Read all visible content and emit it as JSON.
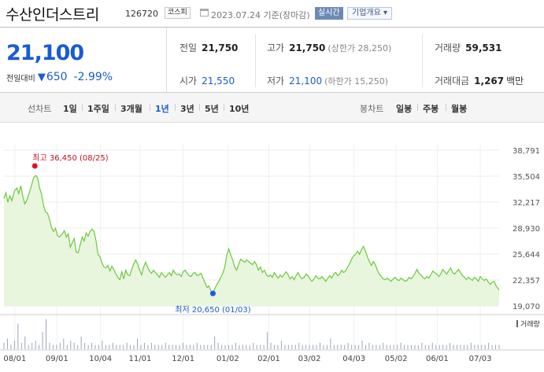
{
  "header": {
    "company_name": "수산인더스트리",
    "code": "126720",
    "market": "코스피",
    "date": "2023.07.24 기준(장마감)",
    "realtime": "실시간",
    "company_overview": "기업개요 ▾"
  },
  "price": {
    "current": "21,100",
    "change_label": "전일대비",
    "change_amount": "650",
    "change_percent": "-2.99%",
    "direction": "down",
    "color_down": "#1a5bd6"
  },
  "stats": {
    "prev_close": {
      "label": "전일",
      "value": "21,750"
    },
    "open": {
      "label": "시가",
      "value": "21,550"
    },
    "high": {
      "label": "고가",
      "value": "21,750",
      "sub": "(상한가 28,250)"
    },
    "low": {
      "label": "저가",
      "value": "21,100",
      "sub": "(하한가 15,250)"
    },
    "volume": {
      "label": "거래량",
      "value": "59,531"
    },
    "trade_value": {
      "label": "거래대금",
      "value": "1,267",
      "unit": "백만"
    }
  },
  "tabs": {
    "line_label": "선차트",
    "line_periods": [
      "1일",
      "1주일",
      "3개월",
      "1년",
      "3년",
      "5년",
      "10년"
    ],
    "active_period": "1년",
    "candle_label": "봉차트",
    "candle_periods": [
      "일봉",
      "주봉",
      "월봉"
    ]
  },
  "chart_data": {
    "type": "area",
    "ylim": [
      19070,
      38791
    ],
    "y_ticks": [
      "38,791",
      "35,504",
      "32,217",
      "28,930",
      "25,644",
      "22,357",
      "19,070"
    ],
    "x_ticks": [
      "08/01",
      "09/01",
      "10/04",
      "11/01",
      "12/01",
      "01/02",
      "02/01",
      "03/02",
      "04/03",
      "05/02",
      "06/01",
      "07/03"
    ],
    "high_annotation": "최고 36,450 (08/25)",
    "low_annotation": "최저 20,650 (01/03)",
    "volume_legend": "거래량",
    "line_color": "#6cc83e",
    "fill_color": "#e8f6de",
    "price_series": [
      [
        0.0,
        32700
      ],
      [
        0.004,
        33400
      ],
      [
        0.008,
        32200
      ],
      [
        0.012,
        33000
      ],
      [
        0.016,
        32400
      ],
      [
        0.021,
        33600
      ],
      [
        0.026,
        34000
      ],
      [
        0.03,
        33300
      ],
      [
        0.034,
        34300
      ],
      [
        0.038,
        33000
      ],
      [
        0.042,
        32000
      ],
      [
        0.046,
        32400
      ],
      [
        0.05,
        33200
      ],
      [
        0.055,
        34200
      ],
      [
        0.06,
        35300
      ],
      [
        0.064,
        35600
      ],
      [
        0.068,
        35300
      ],
      [
        0.072,
        34000
      ],
      [
        0.076,
        33200
      ],
      [
        0.08,
        31800
      ],
      [
        0.084,
        31000
      ],
      [
        0.088,
        30800
      ],
      [
        0.092,
        30000
      ],
      [
        0.096,
        29000
      ],
      [
        0.1,
        28500
      ],
      [
        0.104,
        28900
      ],
      [
        0.108,
        28000
      ],
      [
        0.112,
        27800
      ],
      [
        0.118,
        28200
      ],
      [
        0.122,
        28600
      ],
      [
        0.126,
        27800
      ],
      [
        0.13,
        28200
      ],
      [
        0.134,
        26500
      ],
      [
        0.138,
        27100
      ],
      [
        0.142,
        27600
      ],
      [
        0.146,
        25900
      ],
      [
        0.15,
        25800
      ],
      [
        0.154,
        26800
      ],
      [
        0.158,
        27800
      ],
      [
        0.162,
        27300
      ],
      [
        0.166,
        28300
      ],
      [
        0.17,
        27900
      ],
      [
        0.174,
        28500
      ],
      [
        0.178,
        28800
      ],
      [
        0.182,
        28500
      ],
      [
        0.186,
        27300
      ],
      [
        0.19,
        25600
      ],
      [
        0.194,
        25300
      ],
      [
        0.198,
        24500
      ],
      [
        0.202,
        24000
      ],
      [
        0.206,
        23900
      ],
      [
        0.21,
        24200
      ],
      [
        0.214,
        23500
      ],
      [
        0.218,
        24100
      ],
      [
        0.222,
        23700
      ],
      [
        0.226,
        23100
      ],
      [
        0.23,
        22700
      ],
      [
        0.234,
        22400
      ],
      [
        0.238,
        23400
      ],
      [
        0.242,
        22500
      ],
      [
        0.246,
        23600
      ],
      [
        0.25,
        23000
      ],
      [
        0.254,
        22900
      ],
      [
        0.258,
        23700
      ],
      [
        0.262,
        24400
      ],
      [
        0.266,
        24900
      ],
      [
        0.27,
        24400
      ],
      [
        0.274,
        23600
      ],
      [
        0.278,
        23000
      ],
      [
        0.282,
        24000
      ],
      [
        0.286,
        24600
      ],
      [
        0.29,
        24000
      ],
      [
        0.294,
        23500
      ],
      [
        0.298,
        23200
      ],
      [
        0.302,
        23600
      ],
      [
        0.306,
        23300
      ],
      [
        0.31,
        23000
      ],
      [
        0.314,
        22700
      ],
      [
        0.318,
        23300
      ],
      [
        0.322,
        23000
      ],
      [
        0.326,
        22700
      ],
      [
        0.33,
        23000
      ],
      [
        0.334,
        23300
      ],
      [
        0.338,
        22900
      ],
      [
        0.342,
        23600
      ],
      [
        0.346,
        23200
      ],
      [
        0.35,
        23000
      ],
      [
        0.354,
        23100
      ],
      [
        0.358,
        22800
      ],
      [
        0.362,
        23400
      ],
      [
        0.366,
        23600
      ],
      [
        0.37,
        23200
      ],
      [
        0.374,
        22900
      ],
      [
        0.378,
        22800
      ],
      [
        0.382,
        23200
      ],
      [
        0.386,
        23300
      ],
      [
        0.39,
        22900
      ],
      [
        0.394,
        23000
      ],
      [
        0.398,
        23200
      ],
      [
        0.402,
        22600
      ],
      [
        0.406,
        22000
      ],
      [
        0.41,
        21400
      ],
      [
        0.414,
        21600
      ],
      [
        0.418,
        21000
      ],
      [
        0.422,
        20650
      ],
      [
        0.426,
        21300
      ],
      [
        0.43,
        21800
      ],
      [
        0.434,
        22200
      ],
      [
        0.438,
        22700
      ],
      [
        0.442,
        23200
      ],
      [
        0.446,
        24000
      ],
      [
        0.45,
        25500
      ],
      [
        0.454,
        26300
      ],
      [
        0.458,
        25500
      ],
      [
        0.462,
        24900
      ],
      [
        0.466,
        24000
      ],
      [
        0.47,
        23600
      ],
      [
        0.474,
        24300
      ],
      [
        0.478,
        25000
      ],
      [
        0.482,
        24800
      ],
      [
        0.486,
        24600
      ],
      [
        0.49,
        24900
      ],
      [
        0.494,
        24700
      ],
      [
        0.498,
        24500
      ],
      [
        0.502,
        24300
      ],
      [
        0.506,
        24700
      ],
      [
        0.51,
        24300
      ],
      [
        0.514,
        23600
      ],
      [
        0.518,
        24000
      ],
      [
        0.522,
        23300
      ],
      [
        0.526,
        23600
      ],
      [
        0.53,
        23000
      ],
      [
        0.534,
        22800
      ],
      [
        0.538,
        23000
      ],
      [
        0.542,
        22700
      ],
      [
        0.546,
        23300
      ],
      [
        0.55,
        22900
      ],
      [
        0.554,
        22600
      ],
      [
        0.558,
        23000
      ],
      [
        0.562,
        22700
      ],
      [
        0.566,
        23100
      ],
      [
        0.57,
        23400
      ],
      [
        0.574,
        23000
      ],
      [
        0.578,
        22500
      ],
      [
        0.582,
        22800
      ],
      [
        0.586,
        22400
      ],
      [
        0.59,
        22900
      ],
      [
        0.594,
        23300
      ],
      [
        0.598,
        22800
      ],
      [
        0.602,
        22500
      ],
      [
        0.606,
        22700
      ],
      [
        0.61,
        23100
      ],
      [
        0.614,
        22900
      ],
      [
        0.618,
        22500
      ],
      [
        0.622,
        22200
      ],
      [
        0.626,
        22500
      ],
      [
        0.63,
        22900
      ],
      [
        0.634,
        22600
      ],
      [
        0.638,
        22500
      ],
      [
        0.642,
        22800
      ],
      [
        0.646,
        22500
      ],
      [
        0.65,
        22200
      ],
      [
        0.654,
        22600
      ],
      [
        0.658,
        22900
      ],
      [
        0.662,
        22600
      ],
      [
        0.666,
        23100
      ],
      [
        0.67,
        23300
      ],
      [
        0.674,
        22900
      ],
      [
        0.678,
        23100
      ],
      [
        0.682,
        23600
      ],
      [
        0.686,
        23300
      ],
      [
        0.69,
        23500
      ],
      [
        0.694,
        24000
      ],
      [
        0.698,
        24400
      ],
      [
        0.702,
        25000
      ],
      [
        0.706,
        25400
      ],
      [
        0.71,
        25600
      ],
      [
        0.714,
        26000
      ],
      [
        0.718,
        25600
      ],
      [
        0.722,
        26200
      ],
      [
        0.726,
        26600
      ],
      [
        0.73,
        26000
      ],
      [
        0.734,
        25300
      ],
      [
        0.738,
        24700
      ],
      [
        0.742,
        24200
      ],
      [
        0.746,
        24700
      ],
      [
        0.75,
        24300
      ],
      [
        0.754,
        23600
      ],
      [
        0.758,
        23100
      ],
      [
        0.762,
        22800
      ],
      [
        0.766,
        22500
      ],
      [
        0.77,
        22400
      ],
      [
        0.774,
        22600
      ],
      [
        0.778,
        22400
      ],
      [
        0.782,
        22200
      ],
      [
        0.786,
        22500
      ],
      [
        0.79,
        22700
      ],
      [
        0.794,
        22400
      ],
      [
        0.798,
        22300
      ],
      [
        0.802,
        22600
      ],
      [
        0.806,
        22400
      ],
      [
        0.81,
        22200
      ],
      [
        0.814,
        22300
      ],
      [
        0.818,
        22700
      ],
      [
        0.822,
        22500
      ],
      [
        0.826,
        22800
      ],
      [
        0.83,
        23200
      ],
      [
        0.834,
        23700
      ],
      [
        0.838,
        23200
      ],
      [
        0.842,
        23000
      ],
      [
        0.846,
        22700
      ],
      [
        0.85,
        22500
      ],
      [
        0.854,
        22800
      ],
      [
        0.858,
        22600
      ],
      [
        0.862,
        23000
      ],
      [
        0.866,
        23500
      ],
      [
        0.87,
        23300
      ],
      [
        0.874,
        23100
      ],
      [
        0.878,
        22800
      ],
      [
        0.882,
        23100
      ],
      [
        0.886,
        23700
      ],
      [
        0.89,
        23400
      ],
      [
        0.894,
        23100
      ],
      [
        0.898,
        23500
      ],
      [
        0.902,
        23900
      ],
      [
        0.906,
        23300
      ],
      [
        0.91,
        23100
      ],
      [
        0.914,
        23400
      ],
      [
        0.918,
        23700
      ],
      [
        0.922,
        23300
      ],
      [
        0.926,
        22900
      ],
      [
        0.93,
        22700
      ],
      [
        0.934,
        22400
      ],
      [
        0.938,
        22700
      ],
      [
        0.942,
        22500
      ],
      [
        0.946,
        22300
      ],
      [
        0.95,
        22700
      ],
      [
        0.954,
        22500
      ],
      [
        0.958,
        22200
      ],
      [
        0.962,
        22800
      ],
      [
        0.966,
        22500
      ],
      [
        0.97,
        22300
      ],
      [
        0.974,
        22500
      ],
      [
        0.978,
        22100
      ],
      [
        0.982,
        21800
      ],
      [
        0.986,
        22100
      ],
      [
        0.99,
        22200
      ],
      [
        0.994,
        21600
      ],
      [
        1.0,
        21100
      ]
    ],
    "volume_series": [
      3,
      5,
      2,
      4,
      12,
      3,
      6,
      2,
      3,
      4,
      2,
      8,
      14,
      3,
      2,
      2,
      3,
      5,
      2,
      4,
      3,
      2,
      6,
      3,
      2,
      3,
      2,
      2,
      4,
      2,
      2,
      3,
      2,
      2,
      2,
      3,
      2,
      2,
      5,
      2,
      3,
      2,
      3,
      2,
      2,
      2,
      3,
      2,
      2,
      2,
      2,
      3,
      2,
      2,
      2,
      3,
      2,
      2,
      2,
      2,
      6,
      3,
      2,
      2,
      2,
      2,
      3,
      2,
      2,
      2,
      2,
      3,
      2,
      2,
      2,
      8,
      3,
      2,
      2,
      4,
      2,
      2,
      2,
      2,
      3,
      2,
      2,
      2,
      2,
      2,
      3,
      2,
      2,
      5,
      2,
      2,
      2,
      2,
      3,
      2,
      2,
      2,
      4,
      2,
      3,
      2,
      2,
      2,
      3,
      2,
      2,
      2,
      2,
      3,
      2,
      2,
      2,
      2,
      2,
      3,
      2,
      2,
      3,
      2,
      2,
      2,
      2,
      3,
      2,
      2,
      2,
      2,
      2,
      3,
      2,
      2,
      2,
      2,
      3,
      2,
      2,
      2
    ]
  }
}
